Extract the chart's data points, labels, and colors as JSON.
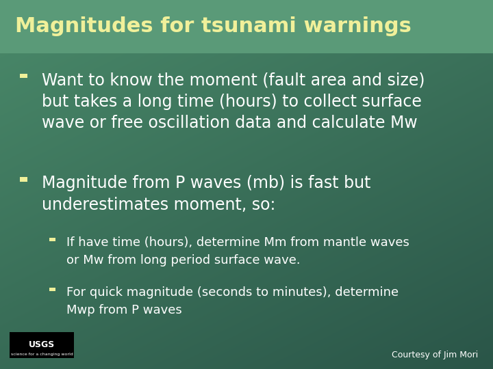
{
  "title": "Magnitudes for tsunami warnings",
  "title_color": "#f0f09a",
  "title_fontsize": 22,
  "bg_color_top": "#4a8a6a",
  "bg_color_mid": "#3a7060",
  "bg_color_bottom": "#2a5548",
  "bullet1_line1": "Want to know the moment (fault area and size)",
  "bullet1_line2": "but takes a long time (hours) to collect surface",
  "bullet1_line3": "wave or free oscillation data and calculate Mw",
  "bullet2_line1": "Magnitude from P waves (mb) is fast but",
  "bullet2_line2": "underestimates moment, so:",
  "subbullet1_line1": "If have time (hours), determine Mm from mantle waves",
  "subbullet1_line2": "or Mw from long period surface wave.",
  "subbullet2_line1": "For quick magnitude (seconds to minutes), determine",
  "subbullet2_line2": "Mwp from P waves",
  "text_color": "#ffffff",
  "bullet_color": "#f0f09a",
  "courtesy_text": "Courtesy of Jim Mori",
  "courtesy_fontsize": 9,
  "main_fontsize": 17,
  "sub_fontsize": 13,
  "title_bar_color": "#5a9a78"
}
